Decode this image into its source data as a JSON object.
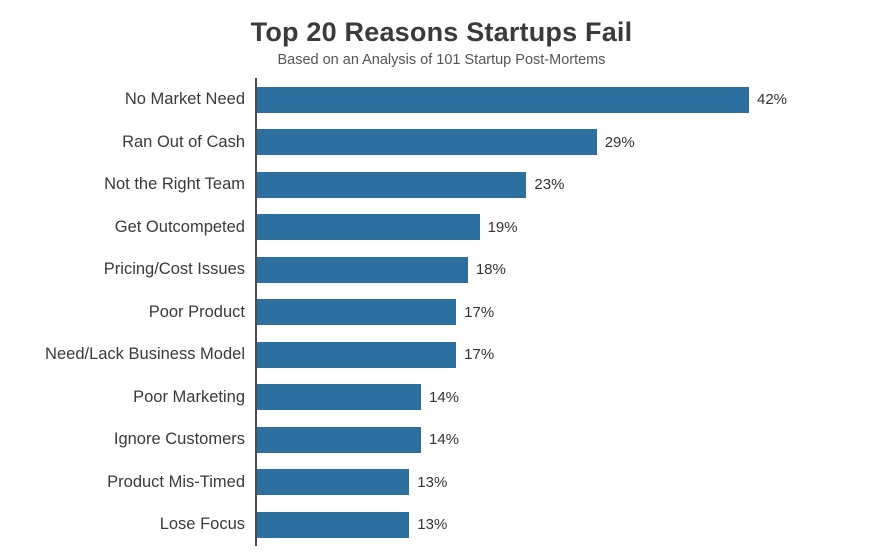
{
  "title": "Top 20 Reasons Startups Fail",
  "subtitle": "Based on an Analysis of 101 Startup Post-Mortems",
  "chart_data": {
    "type": "bar",
    "orientation": "horizontal",
    "title": "Top 20 Reasons Startups Fail",
    "subtitle": "Based on an Analysis of 101 Startup Post-Mortems",
    "categories": [
      "No Market Need",
      "Ran Out of Cash",
      "Not the Right Team",
      "Get Outcompeted",
      "Pricing/Cost Issues",
      "Poor Product",
      "Need/Lack Business Model",
      "Poor Marketing",
      "Ignore Customers",
      "Product Mis-Timed",
      "Lose Focus"
    ],
    "values": [
      42,
      29,
      23,
      19,
      18,
      17,
      17,
      14,
      14,
      13,
      13
    ],
    "value_suffix": "%",
    "data_labels": [
      "42%",
      "29%",
      "23%",
      "19%",
      "18%",
      "17%",
      "17%",
      "14%",
      "14%",
      "13%",
      "13%"
    ],
    "xlim": [
      0,
      45
    ],
    "grid": false,
    "legend": "none",
    "bar_color": "#2d6f9f",
    "axis_color": "#4d4d4d",
    "note": "Chart is cropped at the bottom of the screenshot; remaining reasons not visible"
  }
}
